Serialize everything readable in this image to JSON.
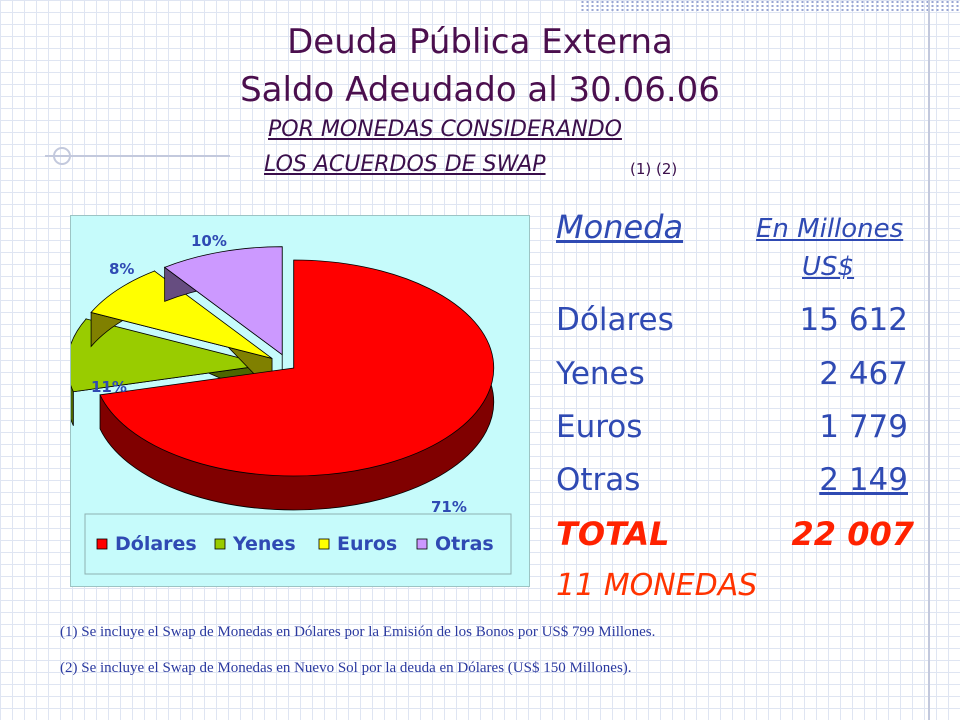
{
  "title_line1": "Deuda Pública Externa",
  "title_line2": "Saldo Adeudado al 30.06.06",
  "subtitle_line1": "POR MONEDAS CONSIDERANDO",
  "subtitle_line2": "LOS ACUERDOS DE SWAP",
  "notes_ref": "(1) (2)",
  "table": {
    "header_moneda": "Moneda",
    "header_unit_line1": "En Millones",
    "header_unit_line2": "US$",
    "rows": [
      {
        "label": "Dólares",
        "value": "15 612"
      },
      {
        "label": "Yenes",
        "value": "2 467"
      },
      {
        "label": "Euros",
        "value": "1 779"
      },
      {
        "label": "Otras",
        "value": "2 149"
      }
    ],
    "total_label": "TOTAL",
    "total_value": "22 007",
    "monedas": "11 MONEDAS"
  },
  "notes": [
    "(1)  Se incluye el Swap de Monedas en Dólares por la Emisión de los Bonos por US$ 799 Millones.",
    "(2)  Se incluye el Swap de Monedas en Nuevo Sol por la deuda en Dólares (US$ 150 Millones)."
  ],
  "chart_data": {
    "type": "pie",
    "categories": [
      "Dólares",
      "Yenes",
      "Euros",
      "Otras"
    ],
    "values": [
      71,
      11,
      8,
      10
    ],
    "labels": [
      "71%",
      "11%",
      "8%",
      "10%"
    ],
    "colors": [
      "#ff0000",
      "#99cc00",
      "#ffff00",
      "#cc99ff"
    ],
    "side_colors": [
      "#800000",
      "#4d6600",
      "#808000",
      "#664d80"
    ],
    "legend": [
      "Dólares",
      "Yenes",
      "Euros",
      "Otras"
    ],
    "legend_position": "bottom",
    "exploded": true,
    "three_d": true,
    "background": "#c6fbfb"
  }
}
